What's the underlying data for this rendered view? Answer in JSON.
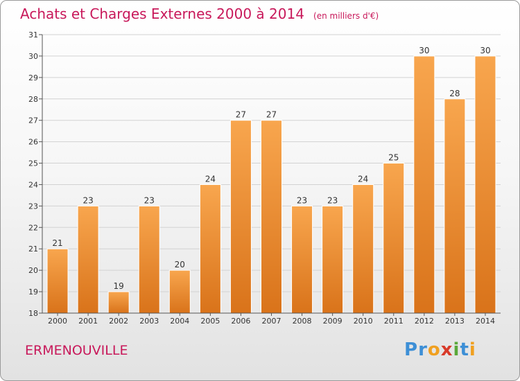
{
  "chart_data": {
    "type": "bar",
    "title": "Achats et Charges Externes 2000 à 2014",
    "unit_label": "(en milliers d'€)",
    "categories": [
      "2000",
      "2001",
      "2002",
      "2003",
      "2004",
      "2005",
      "2006",
      "2007",
      "2008",
      "2009",
      "2010",
      "2011",
      "2012",
      "2013",
      "2014"
    ],
    "values": [
      21,
      23,
      19,
      23,
      20,
      24,
      27,
      27,
      23,
      23,
      24,
      25,
      30,
      28,
      30
    ],
    "ylim": [
      18,
      31
    ],
    "yticks": [
      18,
      19,
      20,
      21,
      22,
      23,
      24,
      25,
      26,
      27,
      28,
      29,
      30,
      31
    ],
    "grid": true,
    "bar_color_top": "#f8a64e",
    "bar_color_bottom": "#d9731a"
  },
  "footer": {
    "place_name": "ERMENOUVILLE",
    "logo_letters": [
      {
        "ch": "P",
        "color": "#3d8fd6"
      },
      {
        "ch": "r",
        "color": "#3d8fd6"
      },
      {
        "ch": "o",
        "color": "#f0a020"
      },
      {
        "ch": "x",
        "color": "#d83a2a"
      },
      {
        "ch": "i",
        "color": "#5aa83a"
      },
      {
        "ch": "t",
        "color": "#3d8fd6"
      },
      {
        "ch": "i",
        "color": "#f0a020"
      }
    ]
  }
}
